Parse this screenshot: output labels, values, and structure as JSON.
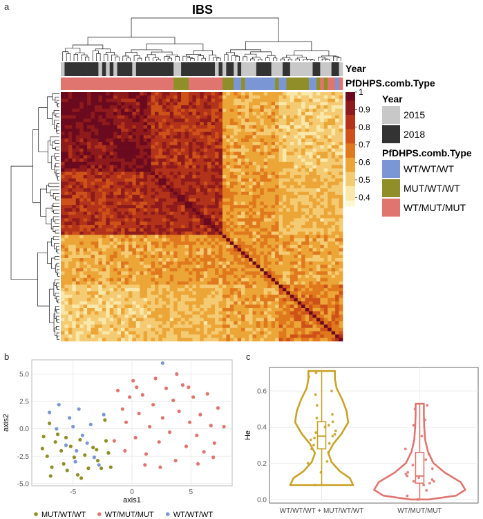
{
  "panels": {
    "a": "a",
    "b": "b",
    "c": "c"
  },
  "heatmap": {
    "title": "IBS",
    "annotation_rows": [
      "Year",
      "PfDHPS.comb.Type"
    ],
    "colorbar_ticks": [
      1,
      0.9,
      0.8,
      0.7,
      0.6,
      0.5,
      0.4
    ],
    "colorbar_labels": [
      "1",
      "0.9",
      "0.8",
      "0.7",
      "0.6",
      "0.5",
      "0.4"
    ],
    "colors": [
      "#6b0a1e",
      "#8e1a1c",
      "#b2321a",
      "#cd5119",
      "#e0791d",
      "#eca537",
      "#f4cb72",
      "#fae8aa",
      "#fdf7d4"
    ],
    "legend": {
      "year_title": "Year",
      "year_items": [
        {
          "label": "2015",
          "color": "#c8c8c8"
        },
        {
          "label": "2018",
          "color": "#333333"
        }
      ],
      "type_title": "PfDHPS.comb.Type",
      "type_items": [
        {
          "label": "WT/WT/WT",
          "color": "#7b96d4"
        },
        {
          "label": "MUT/WT/WT",
          "color": "#8f8e28"
        },
        {
          "label": "WT/MUT/MUT",
          "color": "#e0756f"
        }
      ]
    }
  },
  "chart_data": [
    {
      "type": "heatmap",
      "title": "IBS",
      "value_range": [
        0.35,
        1
      ],
      "description_values": {
        "cluster_sizes": [
          43,
          32
        ],
        "within_cluster1": 0.95,
        "between_clusters": 0.55,
        "within_cluster2": 0.6
      }
    },
    {
      "type": "scatter",
      "xlabel": "axis1",
      "ylabel": "axis2",
      "xlim": [
        -8.5,
        8.5
      ],
      "ylim": [
        -5.2,
        6.3
      ],
      "xticks": [
        -5,
        0,
        5
      ],
      "yticks": [
        -5.0,
        -2.5,
        0.0,
        2.5,
        5.0
      ],
      "ytick_labels": [
        "-5.0",
        "-2.5",
        "0.0",
        "2.5",
        "5.0"
      ],
      "grid": true,
      "legend_position": "bottom",
      "series": [
        {
          "name": "MUT/WT/WT",
          "color": "#8f8e28",
          "points": [
            [
              -7.5,
              -0.7
            ],
            [
              -7.6,
              -1.8
            ],
            [
              -7.2,
              -2.5
            ],
            [
              -6.8,
              -3.5
            ],
            [
              -6.5,
              -1.2
            ],
            [
              -6.3,
              -0.5
            ],
            [
              -6.0,
              -2.0
            ],
            [
              -5.8,
              -3.2
            ],
            [
              -5.5,
              -3.8
            ],
            [
              -5.2,
              -1.6
            ],
            [
              -4.9,
              -2.6
            ],
            [
              -4.6,
              -4.2
            ],
            [
              -4.4,
              -1.0
            ],
            [
              -4.0,
              -2.4
            ],
            [
              -3.7,
              -3.6
            ],
            [
              -3.3,
              -1.7
            ],
            [
              -2.9,
              -2.9
            ],
            [
              -2.6,
              -3.6
            ],
            [
              -2.2,
              -1.1
            ],
            [
              -2.0,
              -2.2
            ],
            [
              -1.8,
              -3.5
            ],
            [
              -6.9,
              -4.3
            ],
            [
              -5.6,
              -0.8
            ],
            [
              -4.3,
              -4.5
            ],
            [
              -3.0,
              -1.9
            ],
            [
              -2.3,
              0.8
            ],
            [
              -7.0,
              0.5
            ]
          ]
        },
        {
          "name": "WT/MUT/MUT",
          "color": "#e0756f",
          "points": [
            [
              -1.2,
              3.5
            ],
            [
              -0.8,
              1.8
            ],
            [
              -0.5,
              0.6
            ],
            [
              -0.2,
              2.9
            ],
            [
              0.1,
              4.4
            ],
            [
              0.3,
              -0.8
            ],
            [
              0.6,
              1.4
            ],
            [
              0.9,
              3.1
            ],
            [
              1.2,
              -2.3
            ],
            [
              1.5,
              0.2
            ],
            [
              1.8,
              2.2
            ],
            [
              2.0,
              4.6
            ],
            [
              2.3,
              -1.2
            ],
            [
              2.6,
              1.0
            ],
            [
              2.9,
              3.7
            ],
            [
              3.2,
              -0.3
            ],
            [
              3.5,
              2.6
            ],
            [
              3.7,
              -2.9
            ],
            [
              4.0,
              1.6
            ],
            [
              4.3,
              4.0
            ],
            [
              4.6,
              -1.6
            ],
            [
              4.9,
              0.6
            ],
            [
              5.2,
              2.9
            ],
            [
              5.5,
              -0.6
            ],
            [
              5.8,
              1.3
            ],
            [
              6.1,
              -2.1
            ],
            [
              6.4,
              3.2
            ],
            [
              6.7,
              0.3
            ],
            [
              7.0,
              -1.3
            ],
            [
              7.3,
              1.9
            ],
            [
              7.8,
              0.2
            ],
            [
              3.8,
              5.0
            ],
            [
              2.4,
              -3.5
            ],
            [
              1.1,
              -3.3
            ],
            [
              -1.5,
              -1.1
            ],
            [
              -0.6,
              -2.0
            ],
            [
              0.4,
              3.8
            ],
            [
              4.8,
              3.8
            ],
            [
              5.6,
              -3.2
            ],
            [
              6.9,
              -2.6
            ]
          ]
        },
        {
          "name": "WT/WT/WT",
          "color": "#7b96d4",
          "points": [
            [
              -7.0,
              1.5
            ],
            [
              -6.4,
              0.0
            ],
            [
              -6.2,
              2.2
            ],
            [
              -5.6,
              -1.5
            ],
            [
              -5.3,
              1.0
            ],
            [
              -5.0,
              0.2
            ],
            [
              -4.7,
              -2.0
            ],
            [
              -4.5,
              1.8
            ],
            [
              -4.2,
              -0.6
            ],
            [
              -3.8,
              -1.3
            ],
            [
              -3.5,
              0.4
            ],
            [
              -3.2,
              -2.6
            ],
            [
              -2.8,
              -3.3
            ],
            [
              -2.4,
              1.3
            ],
            [
              -4.8,
              -3.0
            ],
            [
              2.6,
              6.0
            ]
          ]
        }
      ]
    },
    {
      "type": "violin",
      "xlabel": "",
      "ylabel": "He",
      "ylim": [
        -0.02,
        0.73
      ],
      "yticks": [
        0.0,
        0.2,
        0.4,
        0.6
      ],
      "ytick_labels": [
        "0.0",
        "0.2",
        "0.4",
        "0.6"
      ],
      "categories": [
        "WT/WT/WT + MUT/WT/WT",
        "WT/MUT/MUT"
      ],
      "series": [
        {
          "name": "WT/WT/WT + MUT/WT/WT",
          "color": "#c9a227",
          "min": 0.08,
          "q1": 0.28,
          "median": 0.35,
          "q3": 0.43,
          "max": 0.71,
          "points": [
            0.7,
            0.68,
            0.6,
            0.58,
            0.52,
            0.47,
            0.45,
            0.43,
            0.41,
            0.4,
            0.38,
            0.37,
            0.36,
            0.35,
            0.34,
            0.33,
            0.31,
            0.3,
            0.28,
            0.26,
            0.21,
            0.2,
            0.15,
            0.08
          ]
        },
        {
          "name": "WT/MUT/MUT",
          "color": "#e0756f",
          "min": 0.0,
          "q1": 0.09,
          "median": 0.13,
          "q3": 0.26,
          "max": 0.53,
          "points": [
            0.52,
            0.5,
            0.44,
            0.41,
            0.35,
            0.28,
            0.25,
            0.22,
            0.19,
            0.17,
            0.15,
            0.14,
            0.13,
            0.12,
            0.11,
            0.1,
            0.1,
            0.09,
            0.08,
            0.05,
            0.02,
            0.0
          ]
        }
      ]
    }
  ]
}
